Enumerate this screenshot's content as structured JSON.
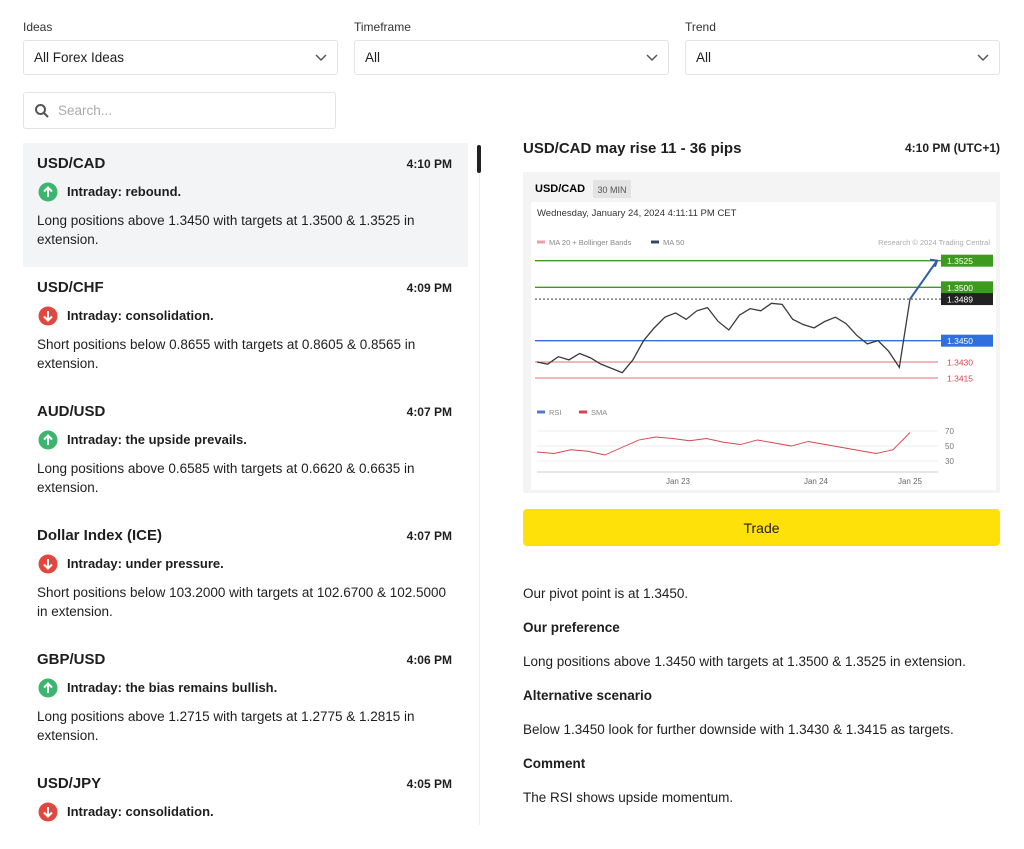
{
  "filters": [
    {
      "label": "Ideas",
      "value": "All Forex Ideas"
    },
    {
      "label": "Timeframe",
      "value": "All"
    },
    {
      "label": "Trend",
      "value": "All"
    }
  ],
  "search": {
    "placeholder": "Search..."
  },
  "ideas": [
    {
      "symbol": "USD/CAD",
      "time": "4:10 PM",
      "trend": "up",
      "headline": "Intraday: rebound.",
      "text": "Long positions above 1.3450 with targets at 1.3500 & 1.3525 in extension."
    },
    {
      "symbol": "USD/CHF",
      "time": "4:09 PM",
      "trend": "down",
      "headline": "Intraday: consolidation.",
      "text": "Short positions below 0.8655 with targets at 0.8605 & 0.8565 in extension."
    },
    {
      "symbol": "AUD/USD",
      "time": "4:07 PM",
      "trend": "up",
      "headline": "Intraday: the upside prevails.",
      "text": "Long positions above 0.6585 with targets at 0.6620 & 0.6635 in extension."
    },
    {
      "symbol": "Dollar Index (ICE)",
      "time": "4:07 PM",
      "trend": "down",
      "headline": "Intraday: under pressure.",
      "text": "Short positions below 103.2000 with targets at 102.6700 & 102.5000 in extension."
    },
    {
      "symbol": "GBP/USD",
      "time": "4:06 PM",
      "trend": "up",
      "headline": "Intraday: the bias remains bullish.",
      "text": "Long positions above 1.2715 with targets at 1.2775 & 1.2815 in extension."
    },
    {
      "symbol": "USD/JPY",
      "time": "4:05 PM",
      "trend": "down",
      "headline": "Intraday: consolidation."
    }
  ],
  "detail": {
    "title": "USD/CAD may rise 11 - 36 pips",
    "time": "4:10 PM (UTC+1)",
    "chart": {
      "symbol": "USD/CAD",
      "timeframe": "30 MIN",
      "date": "Wednesday, January 24, 2024 4:11:11 PM CET",
      "legend": [
        {
          "name": "MA 20 + Bollinger Bands",
          "color": "#e8a0a8"
        },
        {
          "name": "MA 50",
          "color": "#34495e"
        }
      ],
      "credit": "Research © 2024 Trading Central",
      "ylim": [
        1.34,
        1.3535
      ],
      "levels": [
        {
          "value": 1.3525,
          "label": "1.3525",
          "color": "#3d9a1f",
          "boxed": true
        },
        {
          "value": 1.35,
          "label": "1.3500",
          "color": "#3d9a1f",
          "boxed": true
        },
        {
          "value": 1.3489,
          "label": "1.3489",
          "color": "#222222",
          "boxed": true
        },
        {
          "value": 1.345,
          "label": "1.3450",
          "color": "#2f6fe0",
          "boxed": true
        },
        {
          "value": 1.343,
          "label": "1.3430",
          "color": "#d9434f",
          "boxed": false
        },
        {
          "value": 1.3415,
          "label": "1.3415",
          "color": "#d9434f",
          "boxed": false
        }
      ],
      "close": [
        1.343,
        1.3428,
        1.3435,
        1.3432,
        1.3438,
        1.3434,
        1.3428,
        1.3424,
        1.342,
        1.3432,
        1.345,
        1.3462,
        1.3472,
        1.3476,
        1.347,
        1.3478,
        1.3481,
        1.3468,
        1.346,
        1.3474,
        1.348,
        1.3478,
        1.3485,
        1.3484,
        1.347,
        1.3465,
        1.3462,
        1.3468,
        1.3472,
        1.3466,
        1.3455,
        1.3447,
        1.345,
        1.344,
        1.3425,
        1.3489
      ],
      "rsi_legend": [
        {
          "name": "RSI",
          "color": "#5577cc"
        },
        {
          "name": "SMA",
          "color": "#d9434f"
        }
      ],
      "rsi": [
        42,
        40,
        45,
        43,
        38,
        48,
        58,
        62,
        60,
        57,
        60,
        55,
        52,
        58,
        54,
        50,
        56,
        52,
        48,
        44,
        40,
        45,
        68
      ],
      "rsi_ylim": [
        20,
        80
      ],
      "rsi_ticks": [
        70,
        50,
        30
      ],
      "xlabels": [
        "Jan 23",
        "Jan 24",
        "Jan 25"
      ]
    },
    "button": "Trade",
    "pivot": "Our pivot point is at 1.3450.",
    "sections": [
      {
        "heading": "Our preference",
        "text": "Long positions above 1.3450 with targets at 1.3500 & 1.3525 in extension."
      },
      {
        "heading": "Alternative scenario",
        "text": "Below 1.3450 look for further downside with 1.3430 & 1.3415 as targets."
      },
      {
        "heading": "Comment",
        "text": "The RSI shows upside momentum."
      }
    ]
  }
}
